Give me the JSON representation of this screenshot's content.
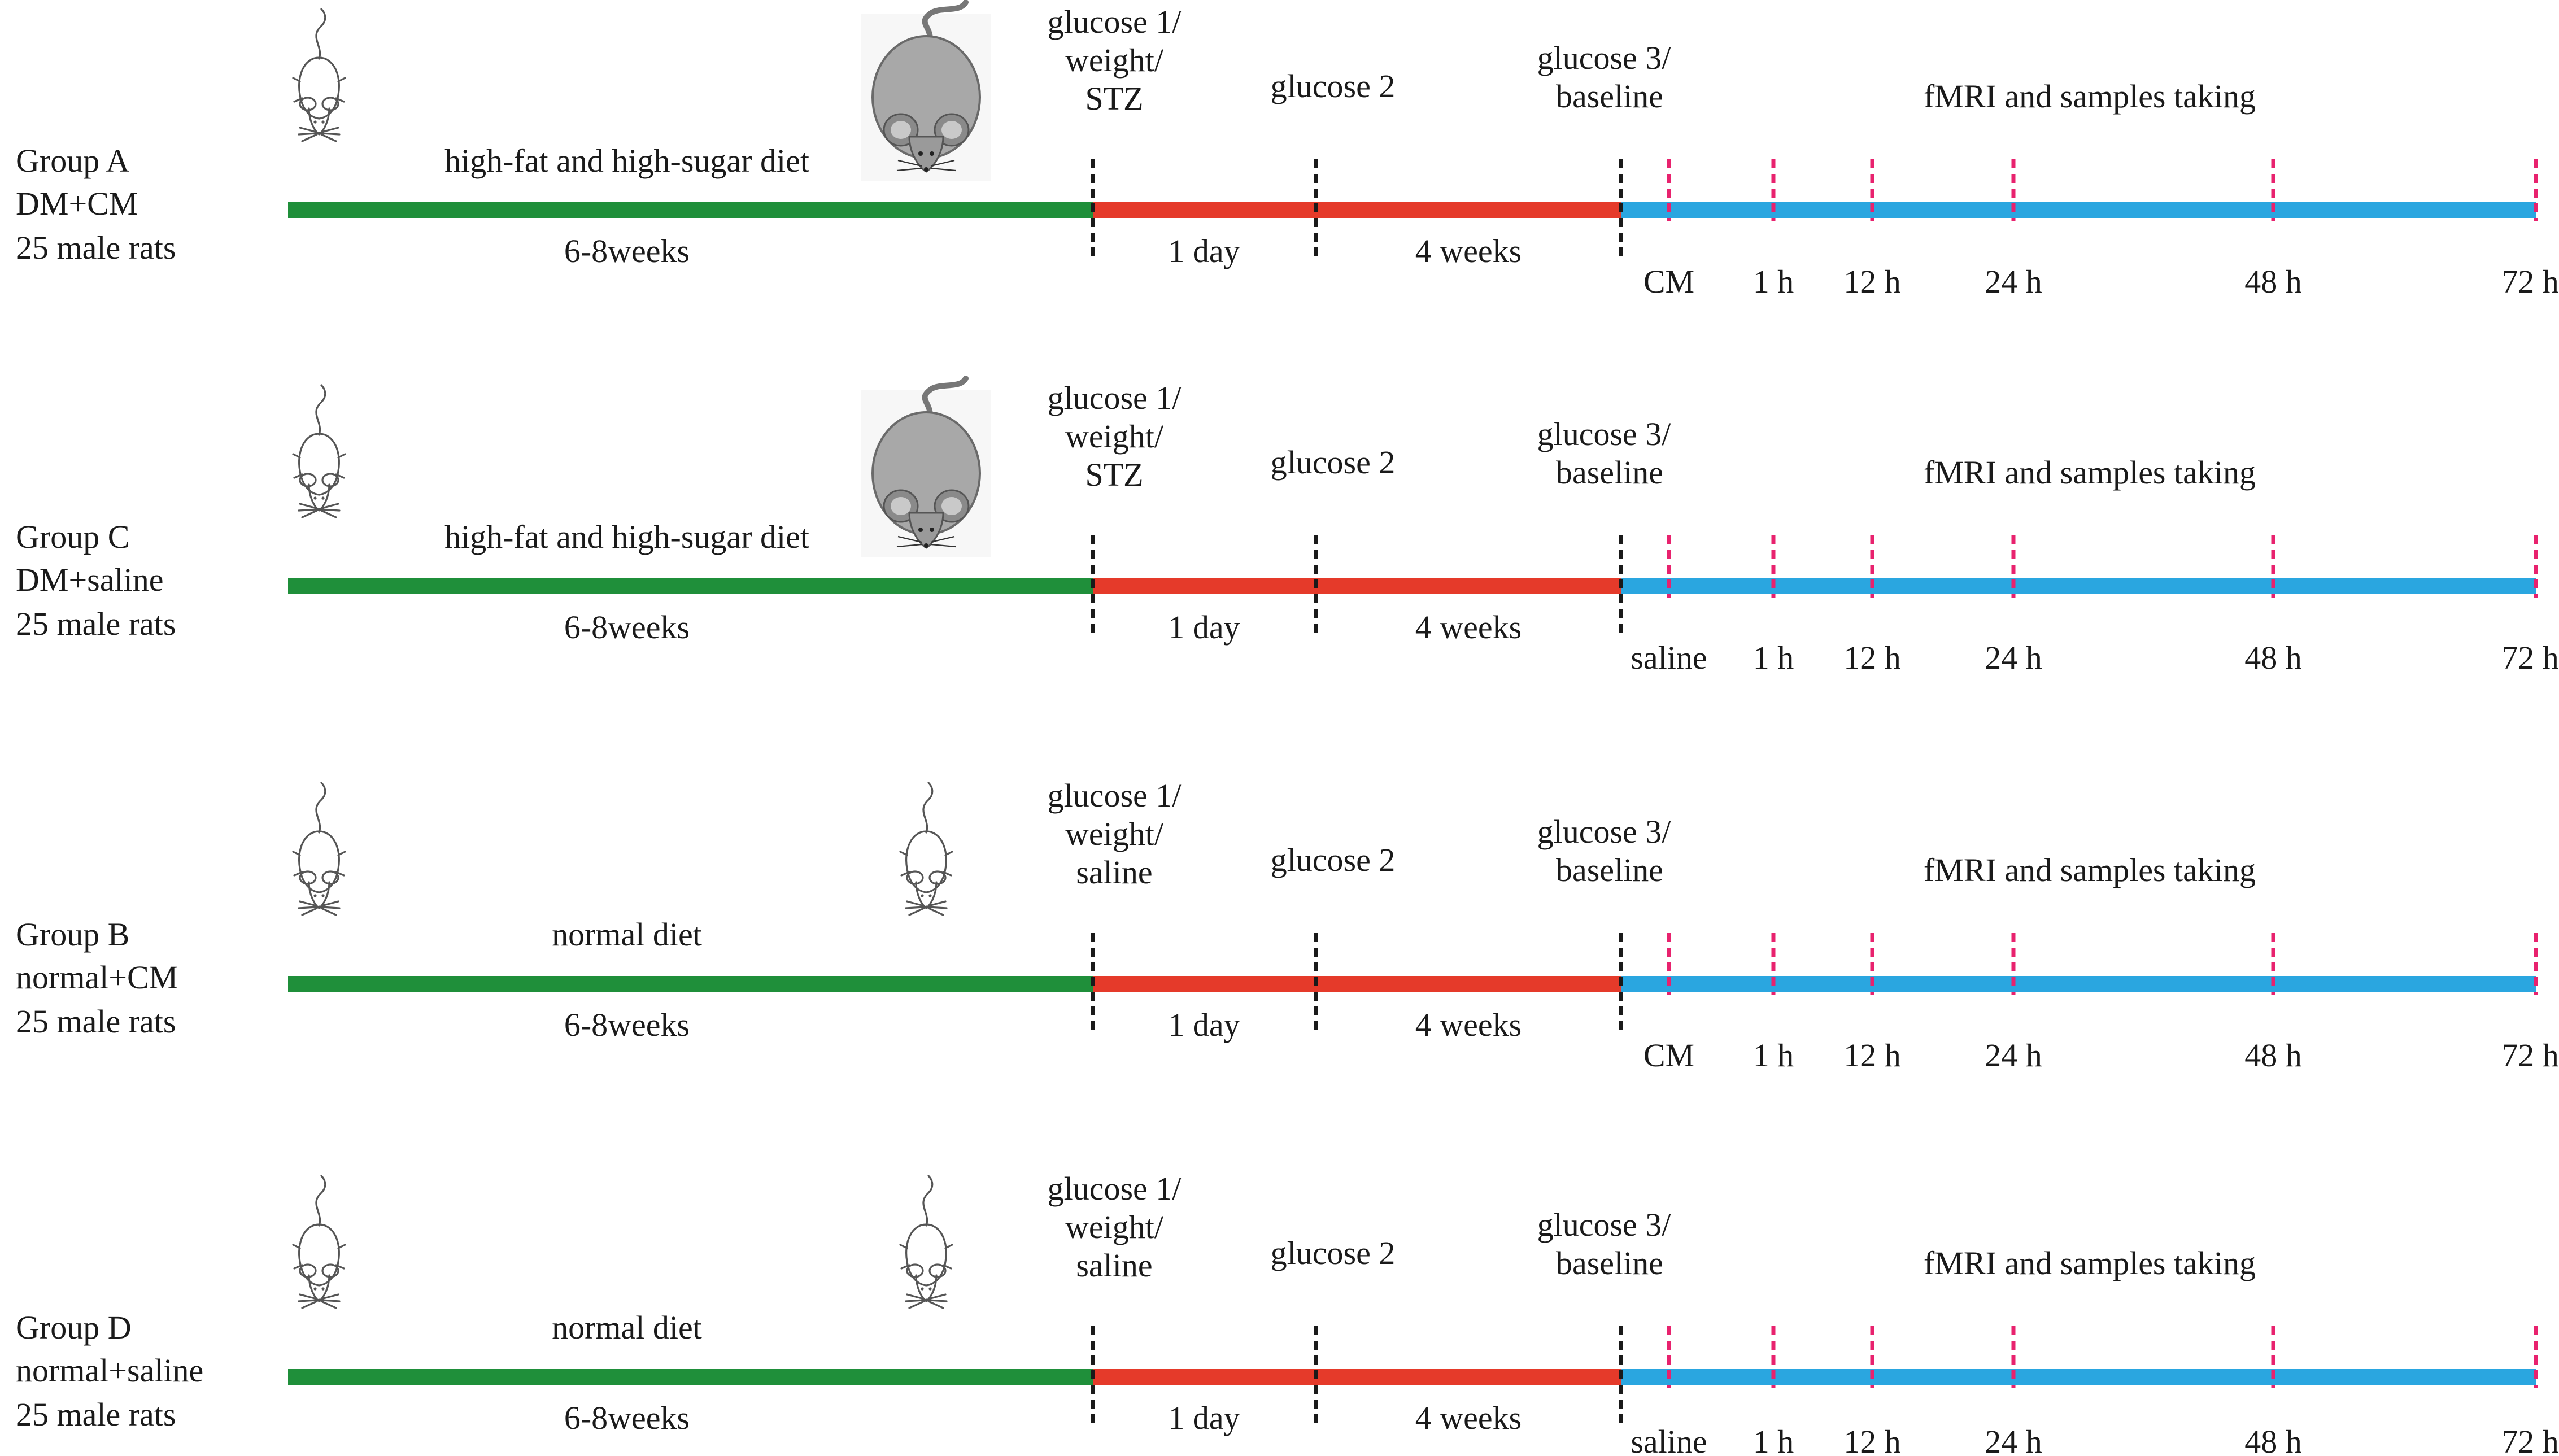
{
  "colors": {
    "diet_bar": "#1f8f3a",
    "induction_bar": "#e53a2a",
    "followup_bar": "#2aa6e0",
    "black_dash": "#1a1a1a",
    "pink_dash": "#e8226e",
    "fat_rat_fill": "#a8a8a8",
    "rat_stroke": "#555555"
  },
  "groups": [
    {
      "id": "A",
      "name": "Group A",
      "condition": "DM+CM",
      "count": "25 male rats",
      "diet": "high-fat and high-sugar diet",
      "diet_duration": "6-8weeks",
      "second_rat": "fat-rat-icon",
      "milestone1": [
        "glucose 1/",
        "weight/",
        "STZ"
      ],
      "milestone2": "glucose 2",
      "milestone3": [
        "glucose 3/",
        "baseline"
      ],
      "interval1": "1 day",
      "interval2": "4 weeks",
      "followup": "fMRI and samples taking",
      "injection": "CM",
      "timepoints": [
        "1 h",
        "12 h",
        "24 h",
        "48 h",
        "72 h"
      ]
    },
    {
      "id": "C",
      "name": "Group C",
      "condition": "DM+saline",
      "count": "25 male rats",
      "diet": "high-fat and high-sugar diet",
      "diet_duration": "6-8weeks",
      "second_rat": "fat-rat-icon",
      "milestone1": [
        "glucose 1/",
        "weight/",
        "STZ"
      ],
      "milestone2": "glucose 2",
      "milestone3": [
        "glucose 3/",
        "baseline"
      ],
      "interval1": "1 day",
      "interval2": "4 weeks",
      "followup": "fMRI and samples taking",
      "injection": "saline",
      "timepoints": [
        "1 h",
        "12 h",
        "24 h",
        "48 h",
        "72 h"
      ]
    },
    {
      "id": "B",
      "name": "Group B",
      "condition": "normal+CM",
      "count": "25 male rats",
      "diet": "normal diet",
      "diet_duration": "6-8weeks",
      "second_rat": "lean-rat-icon",
      "milestone1": [
        "glucose 1/",
        "weight/",
        "saline"
      ],
      "milestone2": "glucose 2",
      "milestone3": [
        "glucose 3/",
        "baseline"
      ],
      "interval1": "1 day",
      "interval2": "4 weeks",
      "followup": "fMRI and samples taking",
      "injection": "CM",
      "timepoints": [
        "1 h",
        "12 h",
        "24 h",
        "48 h",
        "72 h"
      ]
    },
    {
      "id": "D",
      "name": "Group D",
      "condition": "normal+saline",
      "count": "25 male rats",
      "diet": "normal diet",
      "diet_duration": "6-8weeks",
      "second_rat": "lean-rat-icon",
      "milestone1": [
        "glucose 1/",
        "weight/",
        "saline"
      ],
      "milestone2": "glucose 2",
      "milestone3": [
        "glucose 3/",
        "baseline"
      ],
      "interval1": "1 day",
      "interval2": "4 weeks",
      "followup": "fMRI and samples taking",
      "injection": "saline",
      "timepoints": [
        "1 h",
        "12 h",
        "24 h",
        "48 h",
        "72 h"
      ]
    }
  ]
}
